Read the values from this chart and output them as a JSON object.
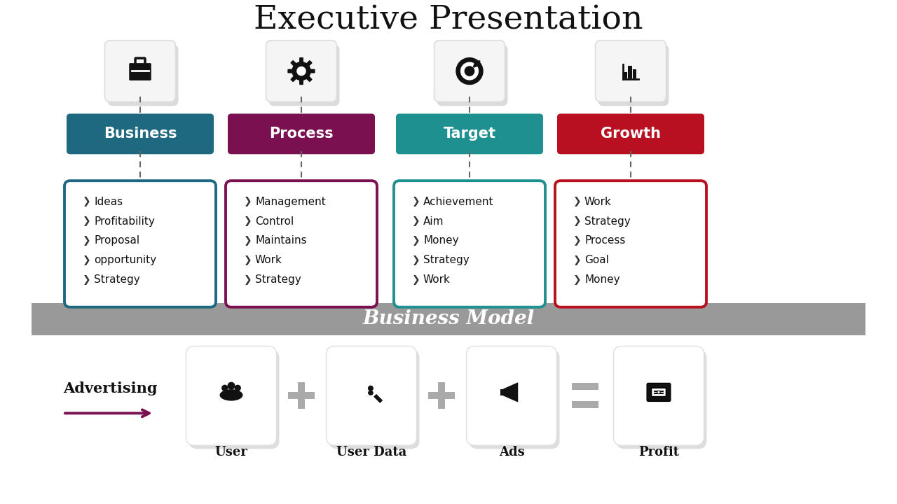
{
  "title": "Executive Presentation",
  "title_fontsize": 34,
  "background_color": "#ffffff",
  "columns": [
    {
      "label": "Business",
      "color": "#1e6880",
      "items": [
        "Ideas",
        "Profitability",
        "Proposal",
        "opportunity",
        "Strategy"
      ]
    },
    {
      "label": "Process",
      "color": "#7a1050",
      "items": [
        "Management",
        "Control",
        "Maintains",
        "Work",
        "Strategy"
      ]
    },
    {
      "label": "Target",
      "color": "#1e9090",
      "items": [
        "Achievement",
        "Aim",
        "Money",
        "Strategy",
        "Work"
      ]
    },
    {
      "label": "Growth",
      "color": "#b81020",
      "items": [
        "Work",
        "Strategy",
        "Process",
        "Goal",
        "Money"
      ]
    }
  ],
  "business_model_label": "Business Model",
  "business_model_bg": "#999999",
  "advertising_label": "Advertising",
  "advertising_color": "#7a1050",
  "bottom_labels": [
    "User",
    "User Data",
    "Ads",
    "Profit"
  ]
}
